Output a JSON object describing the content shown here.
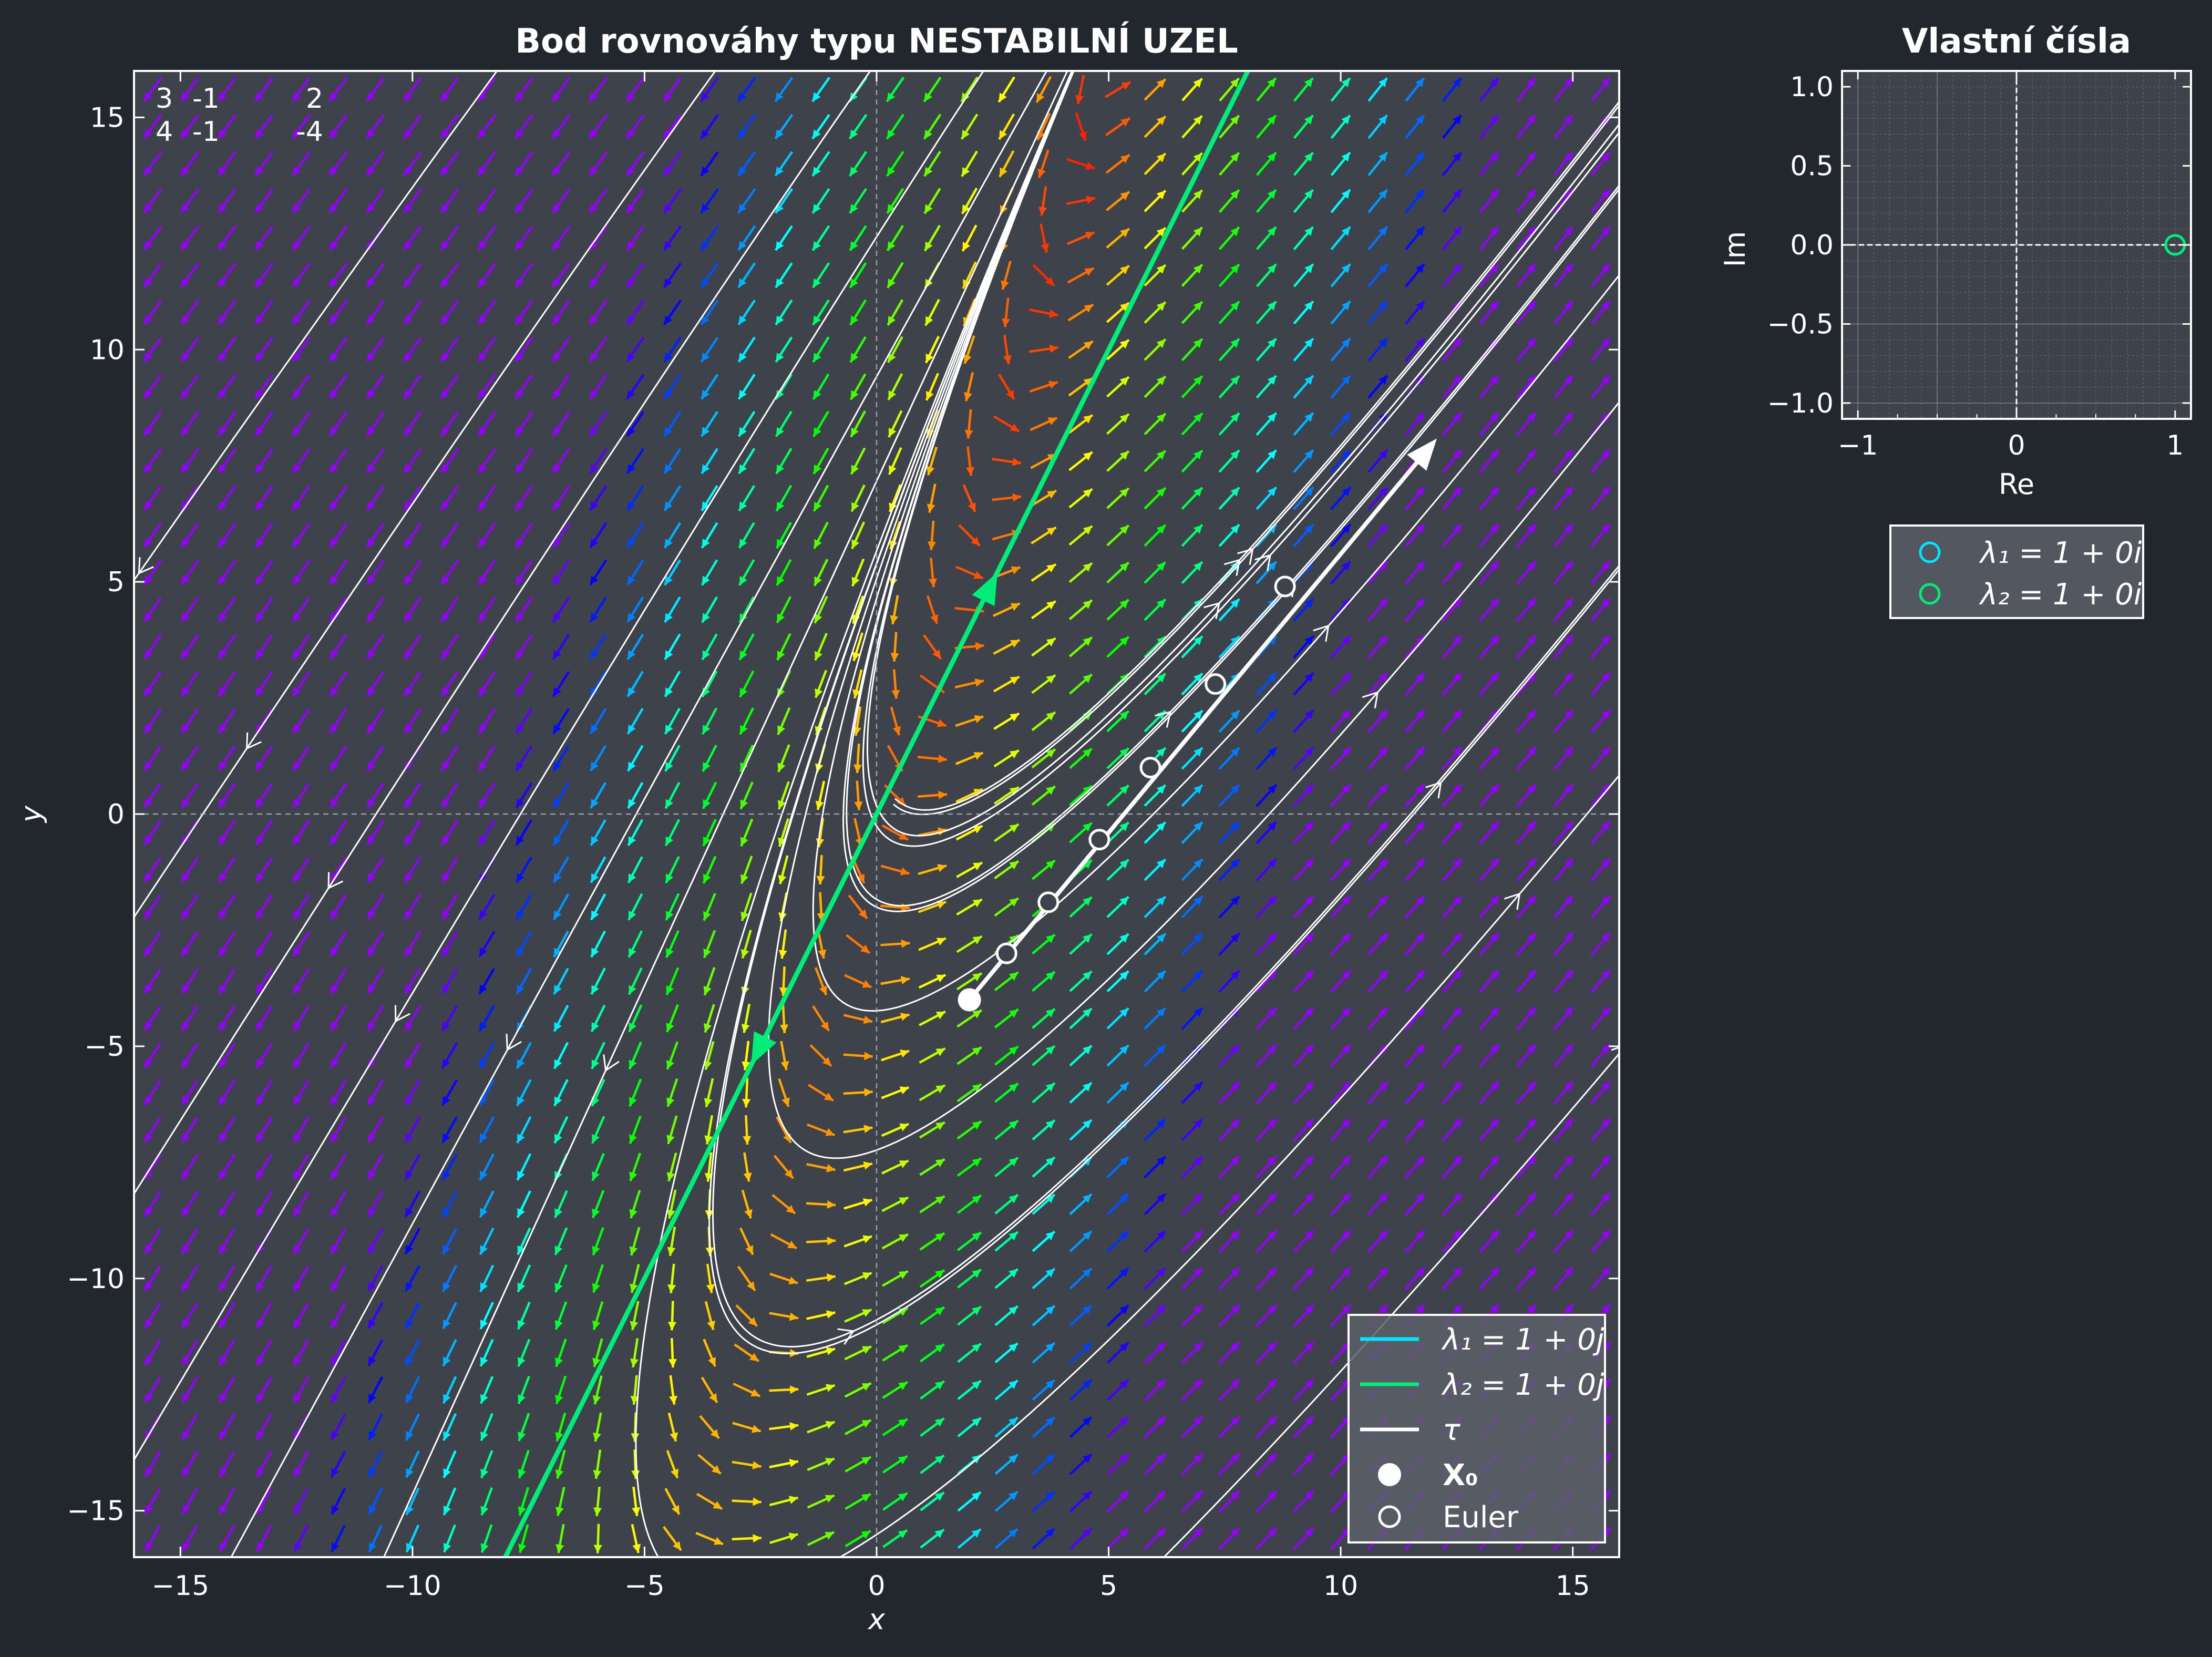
{
  "colors": {
    "background": "#22262d",
    "plot_bg": "#3e424b",
    "eigvec1": "#00e5ff",
    "eigvec2": "#00ee77",
    "trajectory": "#ffffff"
  },
  "matrix": {
    "row1": [
      "3",
      "-1"
    ],
    "row2": [
      "4",
      "-1"
    ],
    "rhs": [
      "2",
      "-4"
    ]
  },
  "chart_data": [
    {
      "type": "line",
      "title": "Bod rovnováhy typu NESTABILNÍ UZEL",
      "xlabel": "x",
      "ylabel": "y",
      "xlim": [
        -16,
        16
      ],
      "ylim": [
        -16,
        16
      ],
      "xticks": [
        -15,
        -10,
        -5,
        0,
        5,
        10,
        15
      ],
      "yticks": [
        -15,
        -10,
        -5,
        0,
        5,
        10,
        15
      ],
      "xtick_labels": [
        "−15",
        "−10",
        "−5",
        "0",
        "5",
        "10",
        "15"
      ],
      "ytick_labels": [
        "−15",
        "−10",
        "−5",
        "0",
        "5",
        "10",
        "15"
      ],
      "system": {
        "A": [
          [
            3,
            -1
          ],
          [
            4,
            -1
          ]
        ],
        "b": [
          2,
          -4
        ]
      },
      "equilibrium": [
        0.2,
        0.4
      ],
      "eigenvector_direction": [
        1,
        2
      ],
      "initial_point": [
        2,
        -4
      ],
      "euler_points": [
        [
          2.8,
          -3.0
        ],
        [
          3.7,
          -1.9
        ],
        [
          4.8,
          -0.55
        ],
        [
          5.9,
          1.0
        ],
        [
          7.3,
          2.8
        ],
        [
          8.8,
          4.9
        ]
      ],
      "trajectory_end": [
        12,
        8
      ],
      "grid": false,
      "legend_position": "bottom-right",
      "legend": [
        {
          "label": "λ₁ = 1 + 0j",
          "symbol": "line",
          "color": "#00e5ff"
        },
        {
          "label": "λ₂ = 1 + 0j",
          "symbol": "line",
          "color": "#00ee77"
        },
        {
          "label": "τ",
          "symbol": "line",
          "color": "#ffffff"
        },
        {
          "label": "X₀",
          "symbol": "filled-circle",
          "color": "#ffffff"
        },
        {
          "label": "Euler",
          "symbol": "open-circle",
          "color": "#ffffff"
        }
      ]
    },
    {
      "type": "scatter",
      "title": "Vlastní čísla",
      "xlabel": "Re",
      "ylabel": "Im",
      "xlim": [
        -1.1,
        1.1
      ],
      "ylim": [
        -1.1,
        1.1
      ],
      "xticks": [
        -1,
        0,
        1
      ],
      "yticks": [
        -1.0,
        -0.5,
        0.0,
        0.5,
        1.0
      ],
      "xtick_labels": [
        "−1",
        "0",
        "1"
      ],
      "ytick_labels": [
        "−1.0",
        "−0.5",
        "0.0",
        "0.5",
        "1.0"
      ],
      "grid": true,
      "legend_position": "below",
      "series": [
        {
          "name": "λ₁ = 1 + 0i",
          "color": "#00e5ff",
          "points": [
            [
              1,
              0
            ]
          ]
        },
        {
          "name": "λ₂ = 1 + 0i",
          "color": "#00ee77",
          "points": [
            [
              1,
              0
            ]
          ]
        }
      ]
    }
  ]
}
